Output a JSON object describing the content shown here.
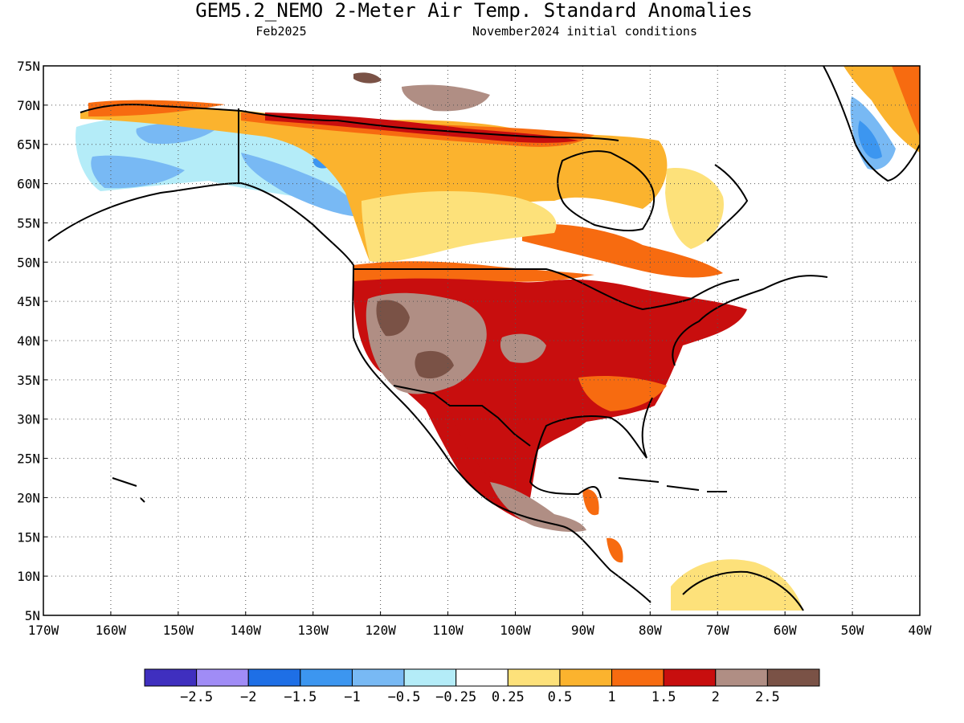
{
  "header": {
    "title": "GEM5.2_NEMO 2-Meter Air Temp. Standard Anomalies",
    "valid_month": "Feb2025",
    "init_conditions": "November2024 initial conditions"
  },
  "axes": {
    "lat_labels": [
      "75N",
      "70N",
      "65N",
      "60N",
      "55N",
      "50N",
      "45N",
      "40N",
      "35N",
      "30N",
      "25N",
      "20N",
      "15N",
      "10N",
      "5N"
    ],
    "lon_labels": [
      "170W",
      "160W",
      "150W",
      "140W",
      "130W",
      "120W",
      "110W",
      "100W",
      "90W",
      "80W",
      "70W",
      "60W",
      "50W",
      "40W"
    ],
    "lat_range": [
      5,
      75
    ],
    "lon_range": [
      -170,
      -40
    ],
    "grid": "dotted"
  },
  "colorbar": {
    "colors": [
      "#3f2fbf",
      "#a08cf6",
      "#1e6fe6",
      "#3c96f0",
      "#78b9f4",
      "#b4ecf8",
      "#ffffff",
      "#fde17a",
      "#fbb32e",
      "#f76b10",
      "#c80e0e",
      "#b08e84",
      "#7a5246"
    ],
    "tick_labels": [
      "−2.5",
      "−2",
      "−1.5",
      "−1",
      "−0.5",
      "−0.25",
      "0.25",
      "0.5",
      "1",
      "1.5",
      "2",
      "2.5"
    ]
  },
  "anomaly_colors": {
    "blue_light": "#b4ecf8",
    "blue_mid": "#78b9f4",
    "blue_dark": "#3c96f0",
    "yellow": "#fde17a",
    "orange_light": "#fbb32e",
    "orange": "#f76b10",
    "red": "#c80e0e",
    "brown_light": "#b08e84",
    "brown_dark": "#7a5246"
  }
}
